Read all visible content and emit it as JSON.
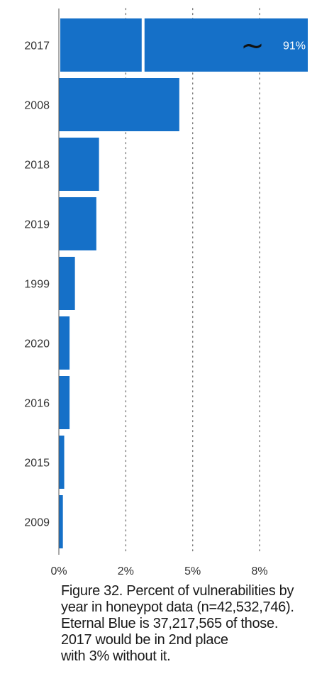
{
  "chart_data": {
    "type": "bar",
    "orientation": "horizontal",
    "categories": [
      "2017",
      "2008",
      "2018",
      "2019",
      "1999",
      "2020",
      "2016",
      "2015",
      "2009"
    ],
    "values": [
      91,
      4.5,
      1.5,
      1.4,
      0.6,
      0.4,
      0.4,
      0.2,
      0.15
    ],
    "bar_color": "#1570c8",
    "x_ticks": [
      {
        "value": 0,
        "label": "0%"
      },
      {
        "value": 2.5,
        "label": "2%"
      },
      {
        "value": 5,
        "label": "5%"
      },
      {
        "value": 7.5,
        "label": "8%"
      }
    ],
    "xlim": [
      0,
      9.3
    ],
    "axis_break": {
      "category": "2017",
      "break_at": 3.2,
      "label": "91%",
      "symbol": "~"
    },
    "grid": "vertical dotted"
  },
  "caption": {
    "lines": [
      "Figure 32. Percent of vulnerabilities by",
      "year in honeypot data (n=42,532,746).",
      "Eternal Blue is 37,217,565 of those.",
      "2017 would be in 2nd place",
      "with 3% without it."
    ]
  }
}
